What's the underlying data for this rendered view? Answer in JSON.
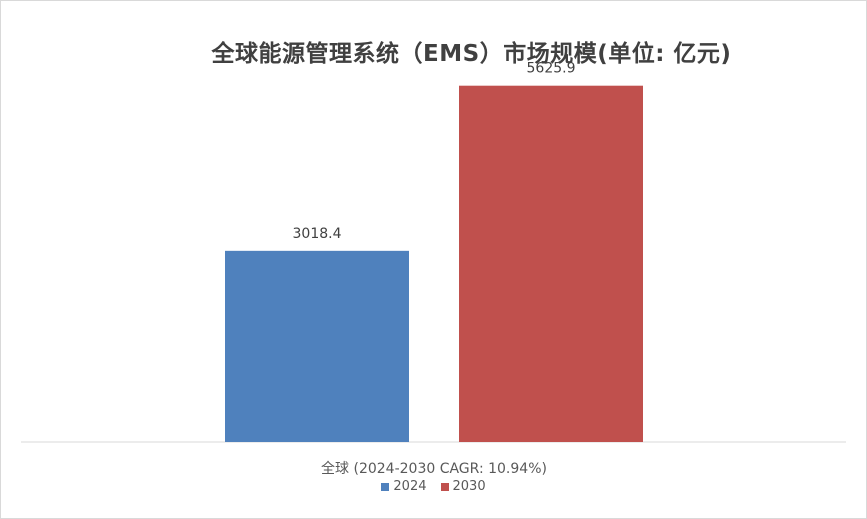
{
  "chart_data": {
    "type": "bar",
    "title": "全球能源管理系统（EMS）市场规模(单位: 亿元)",
    "categories": [
      "全球 (2024-2030 CAGR: 10.94%)"
    ],
    "series": [
      {
        "name": "2024",
        "values": [
          3018.4
        ],
        "color": "#4F81BD"
      },
      {
        "name": "2030",
        "values": [
          5625.9
        ],
        "color": "#C0504D"
      }
    ],
    "ylim": [
      0,
      6000
    ],
    "grid": false,
    "legend_position": "bottom",
    "data_labels": [
      "3018.4",
      "5625.9"
    ]
  }
}
